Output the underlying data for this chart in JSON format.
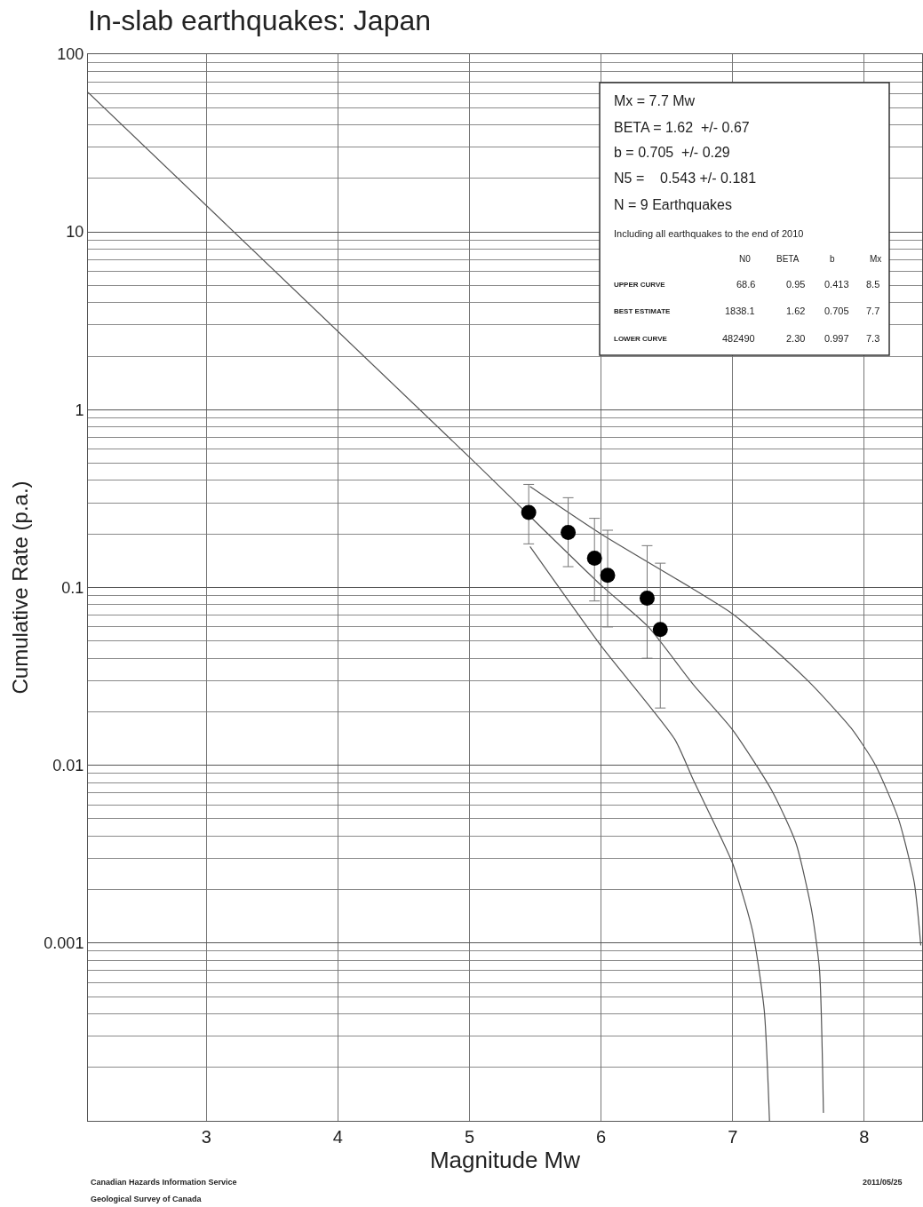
{
  "chart_data": {
    "type": "line",
    "title": "In-slab earthquakes: Japan",
    "xlabel": "Magnitude Mw",
    "ylabel": "Cumulative Rate (p.a.)",
    "xlim": [
      2.1,
      8.44
    ],
    "xticks": [
      3,
      4,
      5,
      6,
      7,
      8
    ],
    "ylim": [
      0.0001,
      100
    ],
    "yticks": [
      100,
      10,
      1,
      0.1,
      0.01,
      0.001,
      {
        "value": 90,
        "label": null
      },
      {
        "value": 80,
        "label": null
      },
      {
        "value": 70,
        "label": null
      },
      {
        "value": 60,
        "label": null
      },
      {
        "value": 50,
        "label": null
      },
      {
        "value": 40,
        "label": null
      },
      {
        "value": 30,
        "label": null
      },
      {
        "value": 20,
        "label": null
      },
      {
        "value": 9,
        "label": null
      },
      {
        "value": 8,
        "label": null
      },
      {
        "value": 7,
        "label": null
      },
      {
        "value": 6,
        "label": null
      },
      {
        "value": 5,
        "label": null
      },
      {
        "value": 4,
        "label": null
      },
      {
        "value": 3,
        "label": null
      },
      {
        "value": 2,
        "label": null
      },
      {
        "value": 0.9,
        "label": null
      },
      {
        "value": 0.8,
        "label": null
      },
      {
        "value": 0.7,
        "label": null
      },
      {
        "value": 0.6,
        "label": null
      },
      {
        "value": 0.5,
        "label": null
      },
      {
        "value": 0.4,
        "label": null
      },
      {
        "value": 0.3,
        "label": null
      },
      {
        "value": 0.2,
        "label": null
      },
      {
        "value": 0.09,
        "label": null
      },
      {
        "value": 0.08,
        "label": null
      },
      {
        "value": 0.07,
        "label": null
      },
      {
        "value": 0.06,
        "label": null
      },
      {
        "value": 0.05,
        "label": null
      },
      {
        "value": 0.04,
        "label": null
      },
      {
        "value": 0.03,
        "label": null
      },
      {
        "value": 0.02,
        "label": null
      },
      {
        "value": 0.009,
        "label": null
      },
      {
        "value": 0.008,
        "label": null
      },
      {
        "value": 0.007,
        "label": null
      },
      {
        "value": 0.006,
        "label": null
      },
      {
        "value": 0.005,
        "label": null
      },
      {
        "value": 0.004,
        "label": null
      },
      {
        "value": 0.003,
        "label": null
      },
      {
        "value": 0.002,
        "label": null
      },
      {
        "value": 0.0009,
        "label": null
      },
      {
        "value": 0.0008,
        "label": null
      },
      {
        "value": 0.0007,
        "label": null
      },
      {
        "value": 0.0006,
        "label": null
      },
      {
        "value": 0.0005,
        "label": null
      },
      {
        "value": 0.0004,
        "label": null
      },
      {
        "value": 0.0003,
        "label": null
      },
      {
        "value": 0.0002,
        "label": null
      }
    ],
    "log": "y",
    "grid": true,
    "series": [
      {
        "color": "#555555",
        "line_style": "solid",
        "marker": "none",
        "x": [
          2.1,
          5.0,
          6.0,
          6.36,
          6.7,
          7.0,
          7.3,
          7.48,
          7.6,
          7.66,
          7.69
        ],
        "values": [
          61,
          0.54,
          0.103,
          0.06,
          0.0285,
          0.0158,
          0.00716,
          0.00367,
          0.00153,
          0.00071,
          0.000111
        ]
      },
      {
        "color": "#555555",
        "line_style": "solid",
        "marker": "none",
        "x": [
          5.46,
          6.0,
          6.7,
          7.0,
          7.3,
          7.6,
          7.9,
          8.08,
          8.26,
          8.38,
          8.43
        ],
        "values": [
          0.37,
          0.2,
          0.098,
          0.071,
          0.046,
          0.0285,
          0.0162,
          0.0102,
          0.005,
          0.0022,
          0.00097
        ]
      },
      {
        "color": "#555555",
        "line_style": "solid",
        "marker": "none",
        "x": [
          5.46,
          6.0,
          6.56,
          6.7,
          7.0,
          7.15,
          7.24,
          7.28
        ],
        "values": [
          0.17,
          0.047,
          0.014,
          0.0083,
          0.0028,
          0.00118,
          0.00042,
          0.0001
        ]
      },
      {
        "type": "scatter",
        "color": "#000000",
        "marker": "circle",
        "x": [
          5.45,
          5.75,
          5.95,
          6.05,
          6.35,
          6.45
        ],
        "values": [
          0.264,
          0.204,
          0.146,
          0.117,
          0.087,
          0.058
        ],
        "errors": [
          [
            0.176,
            0.38
          ],
          [
            0.131,
            0.32
          ],
          [
            0.084,
            0.245
          ],
          [
            0.06,
            0.21
          ],
          [
            0.04,
            0.172
          ],
          [
            0.021,
            0.137
          ]
        ]
      }
    ],
    "annotations": [
      "Mx = 7.7 Mw",
      "BETA = 1.62  +/- 0.67",
      "b = 0.705  +/- 0.29",
      "N5 =    0.543 +/- 0.181",
      "N = 9 Earthquakes",
      "Including all earthquakes to the end of 2010",
      "N0",
      "BETA",
      "b",
      "Mx",
      "UPPER CURVE",
      "68.6",
      "0.95",
      "0.413",
      "8.5",
      "BEST ESTIMATE",
      "1838.1",
      "1.62",
      "0.705",
      "7.7",
      "LOWER CURVE",
      "482490",
      "2.30",
      "0.997",
      "7.3",
      "Canadian Hazards Information Service",
      "Geological Survey of Canada",
      "2011/05/25"
    ]
  }
}
